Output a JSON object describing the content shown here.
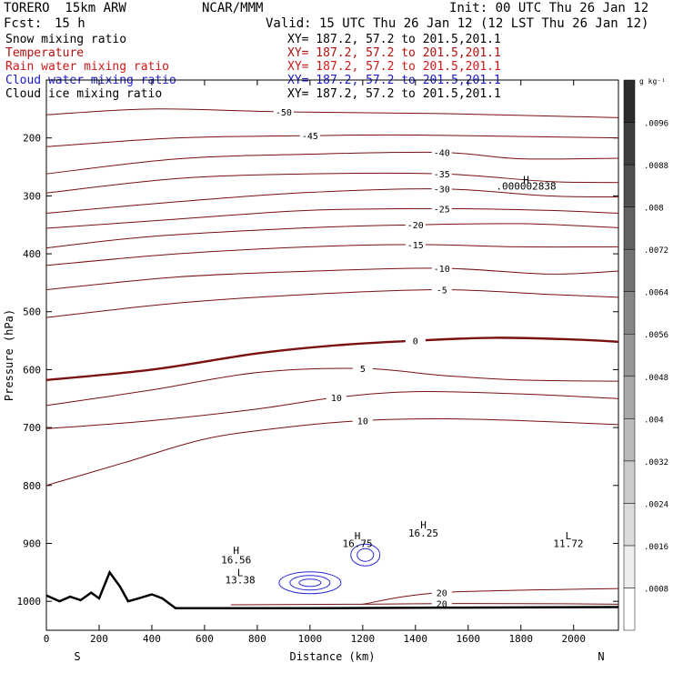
{
  "header": {
    "model": "TORERO  15km ARW",
    "source": "NCAR/MMM",
    "init": "Init: 00 UTC Thu 26 Jan 12",
    "fcst_label": "Fcst:",
    "fcst_value": "15 h",
    "valid": "Valid: 15 UTC Thu 26 Jan 12 (12 LST Thu 26 Jan 12)"
  },
  "fields": [
    {
      "label": "Snow mixing ratio",
      "xy": "XY= 187.2, 57.2 to 201.5,201.1",
      "color": "#000000"
    },
    {
      "label": "Temperature",
      "xy": "XY= 187.2, 57.2 to 201.5,201.1",
      "color": "#b01010"
    },
    {
      "label": "Rain water mixing ratio",
      "xy": "XY= 187.2, 57.2 to 201.5,201.1",
      "color": "#d01818"
    },
    {
      "label": "Cloud water mixing ratio",
      "xy": "XY= 187.2, 57.2 to 201.5,201.1",
      "color": "#1a1acc"
    },
    {
      "label": "Cloud ice mixing ratio",
      "xy": "XY= 187.2, 57.2 to 201.5,201.1",
      "color": "#000000"
    }
  ],
  "chart_data": {
    "type": "contour",
    "xlabel": "Distance (km)",
    "ylabel": "Pressure (hPa)",
    "xlim": [
      0,
      2170
    ],
    "ylim": [
      1050,
      100
    ],
    "x_ticks": [
      0,
      200,
      400,
      600,
      800,
      1000,
      1200,
      1400,
      1600,
      1800,
      2000
    ],
    "y_ticks": [
      200,
      300,
      400,
      500,
      600,
      700,
      800,
      900,
      1000
    ],
    "endpoint_labels": {
      "left": "S",
      "right": "N"
    },
    "colorbar": {
      "unit": "g kg⁻¹",
      "ticks": [
        ".0008",
        ".0016",
        ".0024",
        ".0032",
        ".004",
        ".0048",
        ".0056",
        ".0064",
        ".0072",
        ".008",
        ".0088",
        ".0096"
      ]
    },
    "isotherms": [
      {
        "value": -50,
        "points": [
          [
            0,
            160
          ],
          [
            400,
            150
          ],
          [
            900,
            155
          ],
          [
            1500,
            158
          ],
          [
            2170,
            165
          ]
        ]
      },
      {
        "value": -45,
        "points": [
          [
            0,
            215
          ],
          [
            500,
            200
          ],
          [
            1000,
            196
          ],
          [
            1400,
            195
          ],
          [
            2170,
            200
          ]
        ]
      },
      {
        "value": -40,
        "points": [
          [
            0,
            262
          ],
          [
            500,
            236
          ],
          [
            1000,
            228
          ],
          [
            1500,
            225
          ],
          [
            1800,
            236
          ],
          [
            2170,
            235
          ]
        ]
      },
      {
        "value": -35,
        "points": [
          [
            0,
            295
          ],
          [
            500,
            270
          ],
          [
            1000,
            262
          ],
          [
            1500,
            262
          ],
          [
            1900,
            275
          ],
          [
            2170,
            277
          ]
        ]
      },
      {
        "value": -30,
        "points": [
          [
            0,
            330
          ],
          [
            500,
            310
          ],
          [
            1000,
            294
          ],
          [
            1500,
            288
          ],
          [
            1900,
            300
          ],
          [
            2170,
            302
          ]
        ]
      },
      {
        "value": -25,
        "points": [
          [
            0,
            356
          ],
          [
            500,
            340
          ],
          [
            1000,
            325
          ],
          [
            1500,
            322
          ],
          [
            1900,
            325
          ],
          [
            2170,
            330
          ]
        ]
      },
      {
        "value": -20,
        "points": [
          [
            0,
            390
          ],
          [
            400,
            370
          ],
          [
            1000,
            355
          ],
          [
            1400,
            350
          ],
          [
            1800,
            348
          ],
          [
            2170,
            355
          ]
        ]
      },
      {
        "value": -15,
        "points": [
          [
            0,
            420
          ],
          [
            500,
            400
          ],
          [
            1000,
            388
          ],
          [
            1400,
            384
          ],
          [
            1800,
            388
          ],
          [
            2170,
            388
          ]
        ]
      },
      {
        "value": -10,
        "points": [
          [
            0,
            462
          ],
          [
            500,
            440
          ],
          [
            1000,
            430
          ],
          [
            1500,
            425
          ],
          [
            1900,
            435
          ],
          [
            2170,
            430
          ]
        ]
      },
      {
        "value": -5,
        "points": [
          [
            0,
            510
          ],
          [
            500,
            485
          ],
          [
            1000,
            470
          ],
          [
            1500,
            462
          ],
          [
            1900,
            470
          ],
          [
            2170,
            475
          ]
        ]
      },
      {
        "value": 0,
        "points": [
          [
            0,
            618
          ],
          [
            400,
            600
          ],
          [
            800,
            572
          ],
          [
            1100,
            558
          ],
          [
            1400,
            550
          ],
          [
            1700,
            545
          ],
          [
            2000,
            548
          ],
          [
            2170,
            552
          ]
        ]
      },
      {
        "value": 5,
        "points": [
          [
            0,
            662
          ],
          [
            400,
            635
          ],
          [
            800,
            605
          ],
          [
            1200,
            598
          ],
          [
            1500,
            610
          ],
          [
            1800,
            618
          ],
          [
            2170,
            620
          ]
        ]
      },
      {
        "value": 10,
        "points": [
          [
            0,
            702
          ],
          [
            400,
            688
          ],
          [
            800,
            668
          ],
          [
            1100,
            648
          ],
          [
            1400,
            638
          ],
          [
            1800,
            642
          ],
          [
            2170,
            650
          ]
        ]
      },
      {
        "value": 10,
        "points": [
          [
            0,
            800
          ],
          [
            300,
            760
          ],
          [
            600,
            720
          ],
          [
            900,
            700
          ],
          [
            1200,
            688
          ],
          [
            1500,
            685
          ],
          [
            1800,
            688
          ],
          [
            2170,
            695
          ]
        ]
      },
      {
        "value": 20,
        "points": [
          [
            700,
            1006
          ],
          [
            1200,
            1005
          ],
          [
            1500,
            1004
          ],
          [
            1800,
            1004
          ],
          [
            2170,
            1005
          ]
        ]
      },
      {
        "value": 20,
        "points": [
          [
            1200,
            1005
          ],
          [
            1500,
            985
          ],
          [
            2170,
            978
          ]
        ]
      }
    ],
    "annotations": [
      {
        "text": "H",
        "x": 1820,
        "y": 272
      },
      {
        "text": ".000002838",
        "x": 1820,
        "y": 283
      },
      {
        "text": "H",
        "x": 720,
        "y": 912
      },
      {
        "text": "16.56",
        "x": 720,
        "y": 928
      },
      {
        "text": "L",
        "x": 735,
        "y": 950
      },
      {
        "text": "13.38",
        "x": 735,
        "y": 963
      },
      {
        "text": "H",
        "x": 1180,
        "y": 887
      },
      {
        "text": "16.75",
        "x": 1180,
        "y": 900
      },
      {
        "text": "H",
        "x": 1430,
        "y": 868
      },
      {
        "text": "16.25",
        "x": 1430,
        "y": 882
      },
      {
        "text": "L",
        "x": 1980,
        "y": 887
      },
      {
        "text": "11.72",
        "x": 1980,
        "y": 900
      }
    ],
    "terrain": [
      [
        0,
        990
      ],
      [
        50,
        1000
      ],
      [
        90,
        992
      ],
      [
        130,
        998
      ],
      [
        170,
        985
      ],
      [
        200,
        995
      ],
      [
        240,
        950
      ],
      [
        280,
        975
      ],
      [
        310,
        1000
      ],
      [
        350,
        995
      ],
      [
        400,
        988
      ],
      [
        440,
        995
      ],
      [
        490,
        1012
      ],
      [
        1000,
        1012
      ],
      [
        1500,
        1011
      ],
      [
        2170,
        1010
      ]
    ]
  }
}
